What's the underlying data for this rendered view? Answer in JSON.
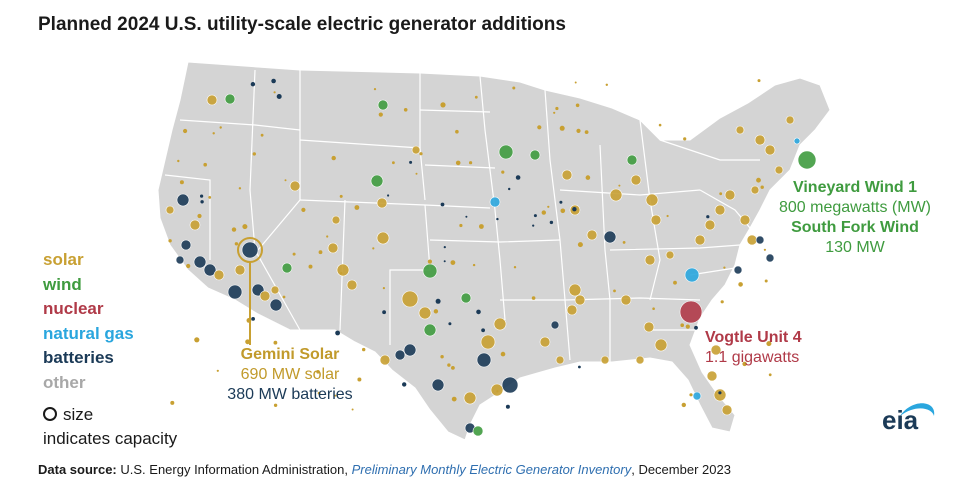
{
  "title": "Planned 2024 U.S. utility-scale electric generator additions",
  "legend": {
    "items": [
      {
        "label": "solar",
        "color": "#c8a032"
      },
      {
        "label": "wind",
        "color": "#3f9b3f"
      },
      {
        "label": "nuclear",
        "color": "#b03a48"
      },
      {
        "label": "natural gas",
        "color": "#2aa6de"
      },
      {
        "label": "batteries",
        "color": "#1b3a57"
      },
      {
        "label": "other",
        "color": "#a8a8a8"
      }
    ],
    "size_note_line1": "size",
    "size_note_line2": "indicates capacity"
  },
  "callouts": {
    "gemini": {
      "name": "Gemini Solar",
      "line1": "690 MW solar",
      "line2": "380 MW batteries"
    },
    "vineyard": {
      "name": "Vineyard Wind 1",
      "line1": "800 megawatts (MW)",
      "name2": "South Fork Wind",
      "line2": "130 MW"
    },
    "vogtle": {
      "name": "Vogtle Unit 4",
      "line1": "1.1 gigawatts"
    }
  },
  "logo": "eia",
  "source": {
    "label": "Data source:",
    "agency": "U.S. Energy Information Administration,",
    "publication": "Preliminary Monthly Electric Generator Inventory",
    "date": ", December 2023"
  }
}
